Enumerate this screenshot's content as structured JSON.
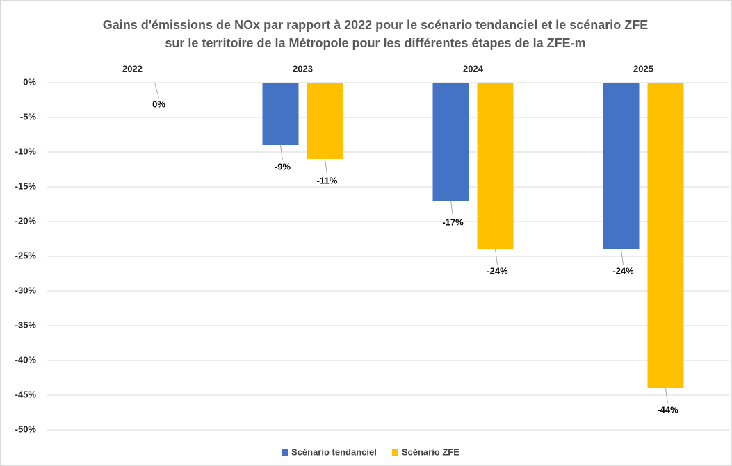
{
  "chart_data": {
    "type": "bar",
    "title": "Gains d'émissions de NOx par rapport à 2022 pour le scénario tendanciel et le scénario ZFE",
    "subtitle": "sur le territoire de la Métropole pour les différentes étapes de la ZFE-m",
    "categories": [
      "2022",
      "2023",
      "2024",
      "2025"
    ],
    "series": [
      {
        "name": "Scénario tendanciel",
        "color": "#4472c4",
        "values": [
          null,
          -9,
          -17,
          -24
        ],
        "value_labels": [
          null,
          "-9%",
          "-17%",
          "-24%"
        ]
      },
      {
        "name": "Scénario ZFE",
        "color": "#ffc000",
        "values": [
          0,
          -11,
          -24,
          -44
        ],
        "value_labels": [
          "0%",
          "-11%",
          "-24%",
          "-44%"
        ]
      }
    ],
    "ylim": [
      -50,
      0
    ],
    "yticks": [
      {
        "value": 0,
        "label": "0%"
      },
      {
        "value": -5,
        "label": "-5%"
      },
      {
        "value": -10,
        "label": "-10%"
      },
      {
        "value": -15,
        "label": "-15%"
      },
      {
        "value": -20,
        "label": "-20%"
      },
      {
        "value": -25,
        "label": "-25%"
      },
      {
        "value": -30,
        "label": "-30%"
      },
      {
        "value": -35,
        "label": "-35%"
      },
      {
        "value": -40,
        "label": "-40%"
      },
      {
        "value": -45,
        "label": "-45%"
      },
      {
        "value": -50,
        "label": "-50%"
      }
    ],
    "grid": true,
    "legend": "bottom"
  }
}
